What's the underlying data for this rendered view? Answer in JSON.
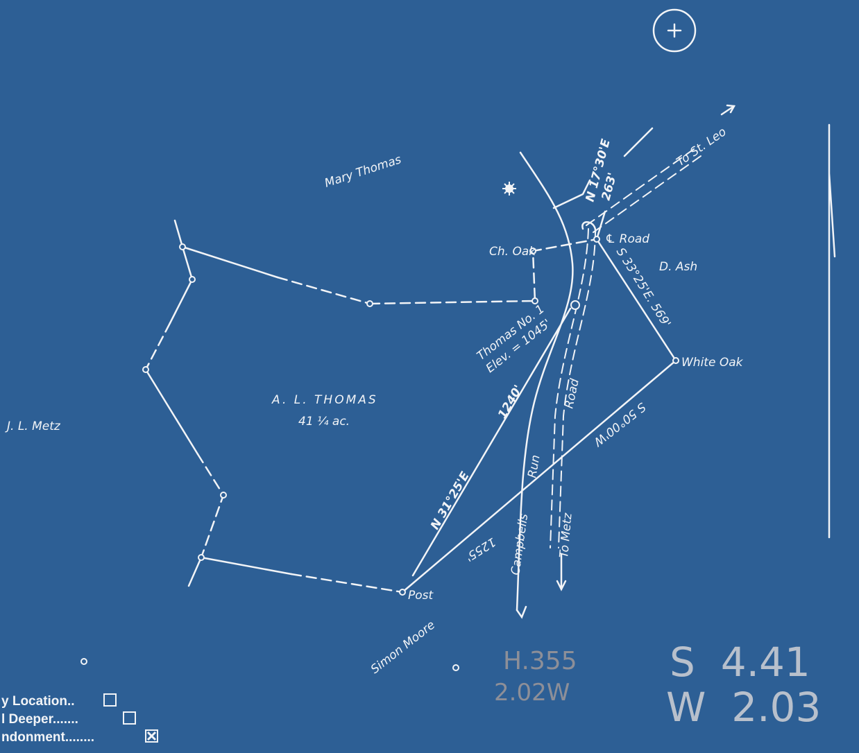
{
  "map": {
    "labels": {
      "mary_thomas": "Mary Thomas",
      "ch_oak": "Ch. Oak",
      "road_center": "℄ Road",
      "d_ash": "D. Ash",
      "bearing_north": "N 17°30'E",
      "dist_north": "263'",
      "to_st_leo": "To St. Leo",
      "bearing_se": "S 33°25'E.  569'",
      "white_oak": "White Oak",
      "well_name": "Thomas No. 1",
      "elevation": "Elev. = 1045'",
      "owner": "A. L. THOMAS",
      "acreage": "41 ¼ ac.",
      "jl_metz": "J. L. Metz",
      "dist_ne": "1240'",
      "bearing_ne": "N 31°25'E",
      "road": "Road",
      "run": "Run",
      "campbells": "Campbells",
      "to_metz": "To Metz",
      "bearing_sw": "S 50°00'W",
      "dist_sw": "1255'",
      "post": "Post",
      "simon_moore": "Simon Moore"
    },
    "pencil_notes": [
      "H.355",
      "2.02W"
    ],
    "coordinates": [
      "S  4.41",
      "W  2.03"
    ],
    "legend": [
      {
        "label": "y Location..",
        "checked": false
      },
      {
        "label": "l Deeper.......",
        "checked": false
      },
      {
        "label": "ndonment........",
        "checked": true
      }
    ]
  }
}
